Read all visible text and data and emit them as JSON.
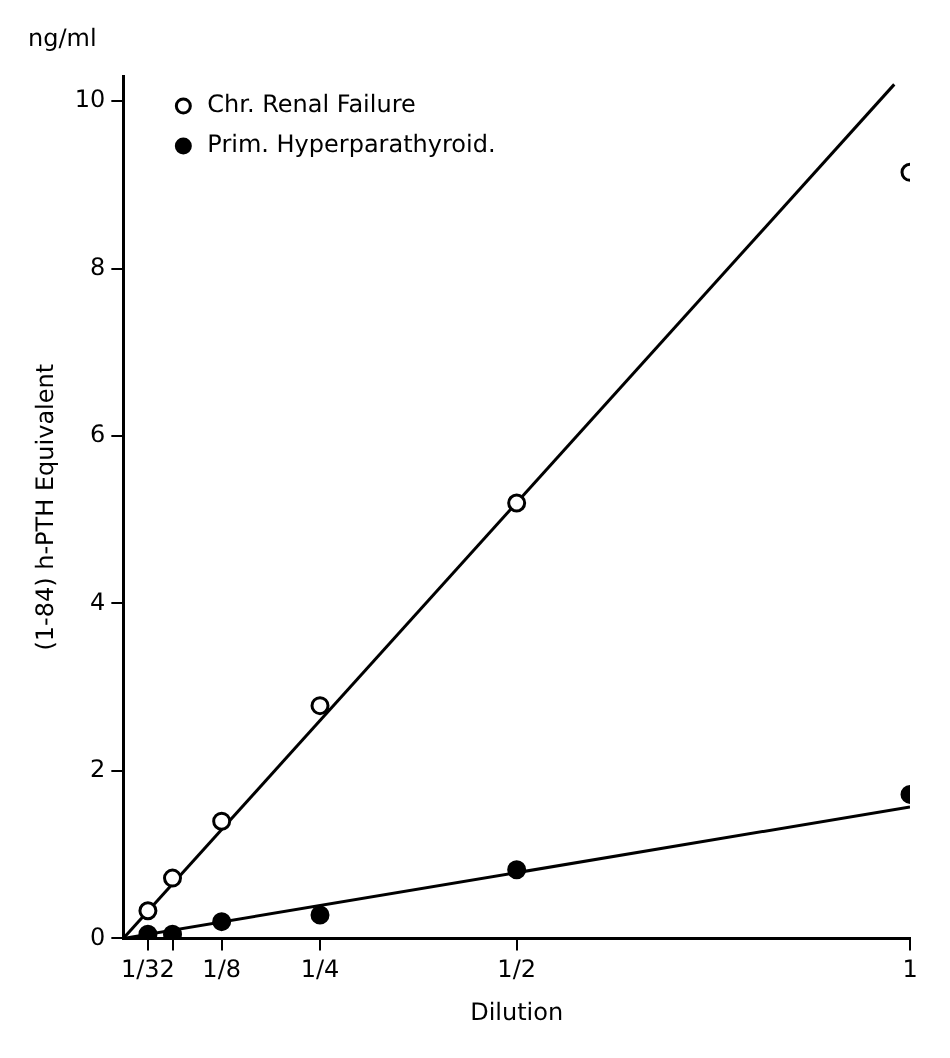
{
  "chart_data": {
    "type": "scatter",
    "xlabel": "Dilution",
    "ylabel": "(1-84) h-PTH Equivalent",
    "annotations": [
      "ng/ml"
    ],
    "xlim": [
      0,
      1
    ],
    "ylim": [
      0,
      10.3
    ],
    "xticks": [
      {
        "value": 0.03125,
        "label": "1/32"
      },
      {
        "value": 0.0625,
        "label": null
      },
      {
        "value": 0.125,
        "label": "1/8"
      },
      {
        "value": 0.25,
        "label": "1/4"
      },
      {
        "value": 0.5,
        "label": "1/2"
      },
      {
        "value": 1,
        "label": "1"
      }
    ],
    "yticks": [
      0,
      2,
      4,
      6,
      8,
      10
    ],
    "grid": false,
    "legend": "top left",
    "marker": "circle",
    "series": [
      {
        "name": "Chr. Renal Failure",
        "color": "#000000",
        "x": [
          0.03125,
          0.0625,
          0.125,
          0.25,
          0.5,
          1
        ],
        "values": [
          0.33,
          0.72,
          1.4,
          2.78,
          5.2,
          9.15
        ]
      },
      {
        "name": "Prim. Hyperparathyroid.",
        "color": "#000000",
        "x": [
          0.03125,
          0.0625,
          0.125,
          0.25,
          0.5,
          1
        ],
        "values": [
          0.05,
          0.05,
          0.2,
          0.28,
          0.82,
          1.72
        ]
      },
      {
        "type": "line",
        "color": "#000000",
        "marker": "none",
        "x": [
          0,
          0.98
        ],
        "values": [
          0,
          10.2
        ]
      },
      {
        "type": "line",
        "color": "#000000",
        "marker": "none",
        "x": [
          0,
          1
        ],
        "values": [
          0,
          1.57
        ]
      }
    ]
  }
}
